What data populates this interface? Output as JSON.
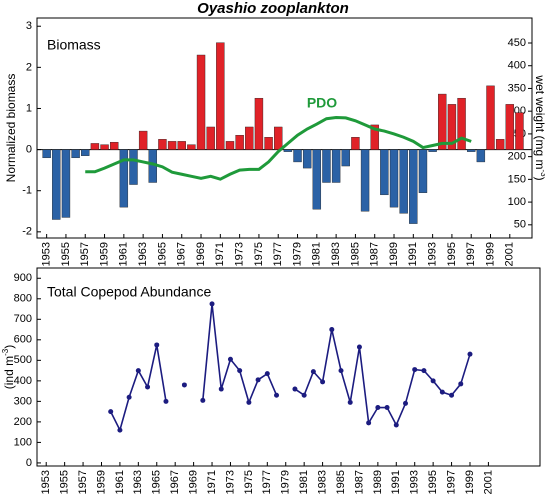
{
  "title": "Oyashio zooplankton",
  "chart_data": [
    {
      "type": "bar",
      "label": "Biomass",
      "ylabel": "Normalized biomass",
      "y2label": [
        "wet weight (mg m",
        "-3",
        ")"
      ],
      "xlim": [
        1952,
        2003.3
      ],
      "xticks": [
        1953,
        1955,
        1957,
        1959,
        1961,
        1963,
        1965,
        1967,
        1969,
        1971,
        1973,
        1975,
        1977,
        1979,
        1981,
        1983,
        1985,
        1987,
        1989,
        1991,
        1993,
        1995,
        1997,
        1999,
        2001
      ],
      "ylim": [
        -2.15,
        3.2
      ],
      "yticks": [
        -2,
        -1,
        0,
        1,
        2,
        3
      ],
      "y2lim": [
        21,
        505
      ],
      "y2ticks": [
        50,
        100,
        150,
        200,
        250,
        300,
        350,
        400,
        450
      ],
      "series": [
        {
          "type": "bar",
          "pos_color": "#e02228",
          "neg_color": "#2b62a6",
          "x": [
            1953,
            1954,
            1955,
            1956,
            1957,
            1958,
            1959,
            1960,
            1961,
            1962,
            1963,
            1964,
            1965,
            1966,
            1967,
            1968,
            1969,
            1970,
            1971,
            1972,
            1973,
            1974,
            1975,
            1976,
            1977,
            1978,
            1979,
            1980,
            1981,
            1982,
            1983,
            1984,
            1985,
            1986,
            1987,
            1988,
            1989,
            1990,
            1991,
            1992,
            1993,
            1994,
            1995,
            1996,
            1997,
            1998,
            1999,
            2000,
            2001,
            2002
          ],
          "values": [
            -0.2,
            -1.7,
            -1.65,
            -0.2,
            -0.15,
            0.15,
            0.12,
            0.18,
            -1.4,
            -0.85,
            0.45,
            -0.8,
            0.25,
            0.2,
            0.2,
            0.12,
            2.3,
            0.55,
            2.6,
            0.2,
            0.35,
            0.55,
            1.25,
            0.3,
            0.55,
            -0.05,
            -0.3,
            -0.45,
            -1.45,
            -0.8,
            -0.8,
            -0.4,
            0.3,
            -1.5,
            0.6,
            -1.1,
            -1.4,
            -1.55,
            -1.8,
            -1.05,
            -0.05,
            1.35,
            1.1,
            1.25,
            -0.05,
            -0.3,
            1.55,
            0.25,
            1.1,
            0.9
          ]
        },
        {
          "type": "line",
          "name": "PDO",
          "color": "#1f9a3a",
          "x": [
            1957,
            1958,
            1959,
            1960,
            1961,
            1962,
            1963,
            1964,
            1965,
            1966,
            1967,
            1968,
            1969,
            1970,
            1971,
            1972,
            1973,
            1974,
            1975,
            1976,
            1977,
            1978,
            1979,
            1980,
            1981,
            1982,
            1983,
            1984,
            1985,
            1986,
            1987,
            1988,
            1989,
            1990,
            1991,
            1992,
            1993,
            1994,
            1995,
            1996,
            1997
          ],
          "values": [
            -0.54,
            -0.54,
            -0.45,
            -0.35,
            -0.25,
            -0.25,
            -0.3,
            -0.35,
            -0.42,
            -0.55,
            -0.6,
            -0.65,
            -0.7,
            -0.65,
            -0.72,
            -0.6,
            -0.5,
            -0.48,
            -0.48,
            -0.3,
            -0.05,
            0.15,
            0.35,
            0.5,
            0.62,
            0.75,
            0.78,
            0.77,
            0.7,
            0.6,
            0.5,
            0.45,
            0.38,
            0.3,
            0.2,
            0.05,
            0.1,
            0.15,
            0.15,
            0.28,
            0.2
          ]
        }
      ]
    },
    {
      "type": "line",
      "label": "Total Copepod Abundance",
      "ylabel": [
        "(ind m",
        "-3",
        ")"
      ],
      "xlim": [
        1952,
        2006.6
      ],
      "xticks": [
        1953,
        1955,
        1957,
        1959,
        1961,
        1963,
        1965,
        1967,
        1969,
        1971,
        1973,
        1975,
        1977,
        1979,
        1981,
        1983,
        1985,
        1987,
        1989,
        1991,
        1993,
        1995,
        1997,
        1999,
        2001
      ],
      "ylim": [
        -15,
        950
      ],
      "yticks": [
        0,
        100,
        200,
        300,
        400,
        500,
        600,
        700,
        800,
        900
      ],
      "series": [
        {
          "type": "line",
          "color": "#1c1c80",
          "x": [
            1960,
            1961,
            1962,
            1963,
            1964,
            1965,
            1966,
            1967,
            1968,
            1969,
            1970,
            1971,
            1972,
            1973,
            1974,
            1975,
            1976,
            1977,
            1978,
            1979,
            1980,
            1981,
            1982,
            1983,
            1984,
            1985,
            1986,
            1987,
            1988,
            1989,
            1990,
            1991,
            1992,
            1993,
            1994,
            1995,
            1996,
            1997,
            1998,
            1999
          ],
          "values": [
            250,
            160,
            320,
            450,
            370,
            575,
            300,
            null,
            380,
            null,
            305,
            775,
            360,
            505,
            450,
            295,
            405,
            435,
            330,
            null,
            360,
            330,
            445,
            395,
            650,
            450,
            295,
            565,
            195,
            270,
            270,
            185,
            290,
            455,
            450,
            400,
            345,
            330,
            385,
            530
          ]
        }
      ]
    }
  ]
}
